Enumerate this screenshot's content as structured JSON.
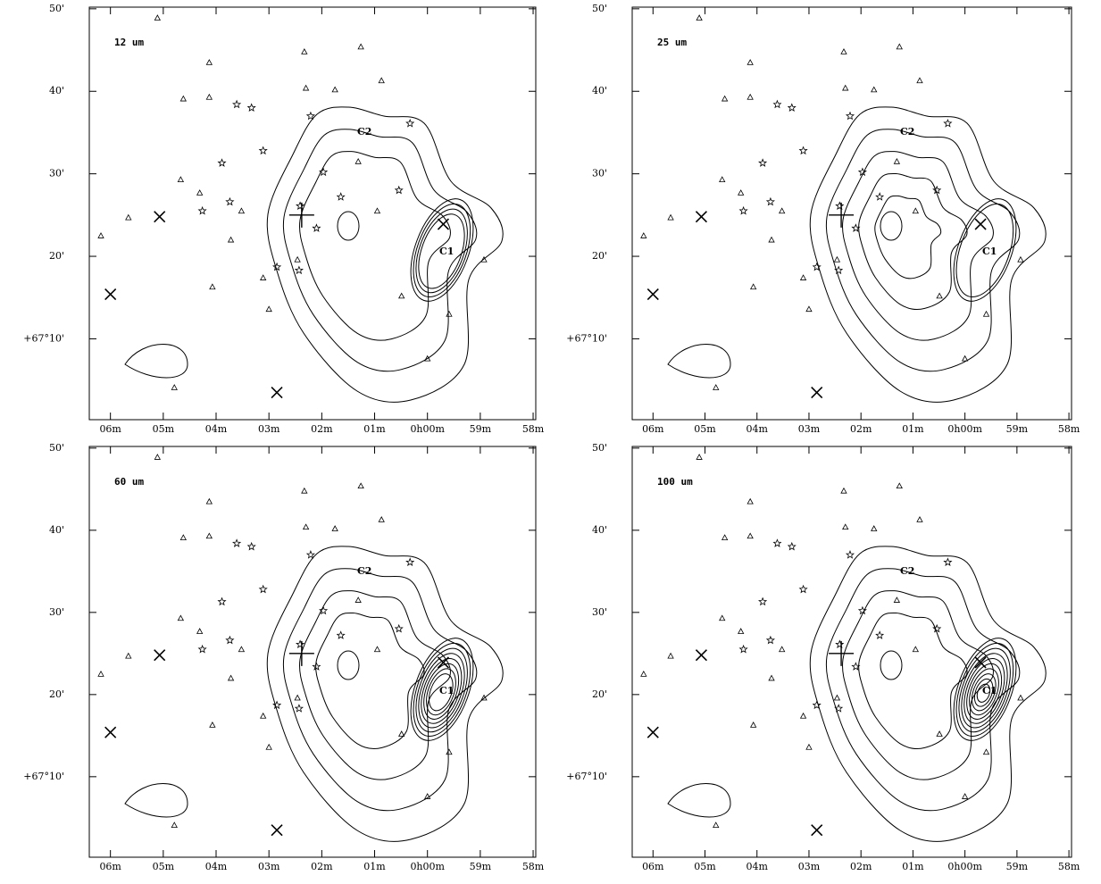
{
  "chart_data": [
    {
      "type": "scatter",
      "title": "12 um",
      "xticks": [
        {
          "value": 6,
          "label": "06m"
        },
        {
          "value": 5,
          "label": "05m"
        },
        {
          "value": 4,
          "label": "04m"
        },
        {
          "value": 3,
          "label": "03m"
        },
        {
          "value": 2,
          "label": "02m"
        },
        {
          "value": 1,
          "label": "01m"
        },
        {
          "value": 0,
          "label": "0h00m"
        },
        {
          "value": -1,
          "label": "59m"
        },
        {
          "value": -2,
          "label": "58m"
        }
      ],
      "xlim": [
        6.4,
        -2.05
      ],
      "ylim": [
        0.2,
        50.2
      ],
      "yticks": [
        {
          "value": 50,
          "label": "50'"
        },
        {
          "value": 40,
          "label": "40'"
        },
        {
          "value": 30,
          "label": "30'"
        },
        {
          "value": 20,
          "label": "20'"
        },
        {
          "value": 10,
          "label": "+67°10'"
        }
      ],
      "annotations": [
        "C2",
        "C1"
      ],
      "series": [
        {
          "marker": "triangle",
          "x": [
            5.11,
            2.33,
            1.26,
            4.13,
            4.62,
            4.13,
            1.75,
            0.87,
            2.3,
            5.66,
            6.18,
            4.31,
            4.07,
            3.0,
            4.79,
            0.49,
            0.0,
            -1.07,
            -0.41,
            2.46,
            3.11,
            1.31,
            0.95,
            3.72,
            3.52,
            4.67
          ],
          "values": [
            48.9,
            44.8,
            45.4,
            43.5,
            39.1,
            39.3,
            40.2,
            41.3,
            40.4,
            24.7,
            22.5,
            27.7,
            16.3,
            13.6,
            4.1,
            15.2,
            7.6,
            19.6,
            13.0,
            19.6,
            17.4,
            31.5,
            25.5,
            22.0,
            25.5,
            29.3
          ]
        },
        {
          "marker": "star",
          "x": [
            3.61,
            3.33,
            2.21,
            0.33,
            3.89,
            2.41,
            2.1,
            1.97,
            0.54,
            2.85,
            2.43,
            3.11,
            1.64,
            3.74,
            4.26
          ],
          "values": [
            38.4,
            38.0,
            37.0,
            36.1,
            31.3,
            26.1,
            23.4,
            30.2,
            28.0,
            18.7,
            18.3,
            32.8,
            27.2,
            26.6,
            25.5
          ]
        },
        {
          "marker": "x",
          "x": [
            5.07,
            6.0,
            2.85,
            -0.3
          ],
          "values": [
            24.8,
            15.4,
            3.5,
            23.9
          ]
        },
        {
          "marker": "plus",
          "x": [
            2.38
          ],
          "values": [
            25.0
          ]
        }
      ]
    },
    {
      "type": "scatter",
      "title": "25 um",
      "xticks": [
        {
          "value": 6,
          "label": "06m"
        },
        {
          "value": 5,
          "label": "05m"
        },
        {
          "value": 4,
          "label": "04m"
        },
        {
          "value": 3,
          "label": "03m"
        },
        {
          "value": 2,
          "label": "02m"
        },
        {
          "value": 1,
          "label": "01m"
        },
        {
          "value": 0,
          "label": "0h00m"
        },
        {
          "value": -1,
          "label": "59m"
        },
        {
          "value": -2,
          "label": "58m"
        }
      ],
      "xlim": [
        6.4,
        -2.05
      ],
      "ylim": [
        0.2,
        50.2
      ],
      "yticks": [
        {
          "value": 50,
          "label": "50'"
        },
        {
          "value": 40,
          "label": "40'"
        },
        {
          "value": 30,
          "label": "30'"
        },
        {
          "value": 20,
          "label": "20'"
        },
        {
          "value": 10,
          "label": "+67°10'"
        }
      ],
      "annotations": [
        "C2",
        "C1"
      ],
      "series": [
        {
          "marker": "triangle",
          "x": [
            5.11,
            2.33,
            1.26,
            4.13,
            4.62,
            4.13,
            1.75,
            0.87,
            2.3,
            5.66,
            6.18,
            4.31,
            4.07,
            3.0,
            4.79,
            0.49,
            0.0,
            -1.07,
            -0.41,
            2.46,
            3.11,
            1.31,
            0.95,
            3.72,
            3.52,
            4.67
          ],
          "values": [
            48.9,
            44.8,
            45.4,
            43.5,
            39.1,
            39.3,
            40.2,
            41.3,
            40.4,
            24.7,
            22.5,
            27.7,
            16.3,
            13.6,
            4.1,
            15.2,
            7.6,
            19.6,
            13.0,
            19.6,
            17.4,
            31.5,
            25.5,
            22.0,
            25.5,
            29.3
          ]
        },
        {
          "marker": "star",
          "x": [
            3.61,
            3.33,
            2.21,
            0.33,
            3.89,
            2.41,
            2.1,
            1.97,
            0.54,
            2.85,
            2.43,
            3.11,
            1.64,
            3.74,
            4.26
          ],
          "values": [
            38.4,
            38.0,
            37.0,
            36.1,
            31.3,
            26.1,
            23.4,
            30.2,
            28.0,
            18.7,
            18.3,
            32.8,
            27.2,
            26.6,
            25.5
          ]
        },
        {
          "marker": "x",
          "x": [
            5.07,
            6.0,
            2.85,
            -0.3
          ],
          "values": [
            24.8,
            15.4,
            3.5,
            23.9
          ]
        },
        {
          "marker": "plus",
          "x": [
            2.38
          ],
          "values": [
            25.0
          ]
        }
      ]
    },
    {
      "type": "scatter",
      "title": "60 um",
      "xticks": [
        {
          "value": 6,
          "label": "06m"
        },
        {
          "value": 5,
          "label": "05m"
        },
        {
          "value": 4,
          "label": "04m"
        },
        {
          "value": 3,
          "label": "03m"
        },
        {
          "value": 2,
          "label": "02m"
        },
        {
          "value": 1,
          "label": "01m"
        },
        {
          "value": 0,
          "label": "0h00m"
        },
        {
          "value": -1,
          "label": "59m"
        },
        {
          "value": -2,
          "label": "58m"
        }
      ],
      "xlim": [
        6.4,
        -2.05
      ],
      "ylim": [
        0.2,
        50.2
      ],
      "yticks": [
        {
          "value": 50,
          "label": "50'"
        },
        {
          "value": 40,
          "label": "40'"
        },
        {
          "value": 30,
          "label": "30'"
        },
        {
          "value": 20,
          "label": "20'"
        },
        {
          "value": 10,
          "label": "+67°10'"
        }
      ],
      "annotations": [
        "C2",
        "C1"
      ],
      "series": [
        {
          "marker": "triangle",
          "x": [
            5.11,
            2.33,
            1.26,
            4.13,
            4.62,
            4.13,
            1.75,
            0.87,
            2.3,
            5.66,
            6.18,
            4.31,
            4.07,
            3.0,
            4.79,
            0.49,
            0.0,
            -1.07,
            -0.41,
            2.46,
            3.11,
            1.31,
            0.95,
            3.72,
            3.52,
            4.67
          ],
          "values": [
            48.9,
            44.8,
            45.4,
            43.5,
            39.1,
            39.3,
            40.2,
            41.3,
            40.4,
            24.7,
            22.5,
            27.7,
            16.3,
            13.6,
            4.1,
            15.2,
            7.6,
            19.6,
            13.0,
            19.6,
            17.4,
            31.5,
            25.5,
            22.0,
            25.5,
            29.3
          ]
        },
        {
          "marker": "star",
          "x": [
            3.61,
            3.33,
            2.21,
            0.33,
            3.89,
            2.41,
            2.1,
            1.97,
            0.54,
            2.85,
            2.43,
            3.11,
            1.64,
            3.74,
            4.26
          ],
          "values": [
            38.4,
            38.0,
            37.0,
            36.1,
            31.3,
            26.1,
            23.4,
            30.2,
            28.0,
            18.7,
            18.3,
            32.8,
            27.2,
            26.6,
            25.5
          ]
        },
        {
          "marker": "x",
          "x": [
            5.07,
            6.0,
            2.85,
            -0.3
          ],
          "values": [
            24.8,
            15.4,
            3.5,
            23.9
          ]
        },
        {
          "marker": "plus",
          "x": [
            2.38
          ],
          "values": [
            25.0
          ]
        }
      ]
    },
    {
      "type": "scatter",
      "title": "100 um",
      "xticks": [
        {
          "value": 6,
          "label": "06m"
        },
        {
          "value": 5,
          "label": "05m"
        },
        {
          "value": 4,
          "label": "04m"
        },
        {
          "value": 3,
          "label": "03m"
        },
        {
          "value": 2,
          "label": "02m"
        },
        {
          "value": 1,
          "label": "01m"
        },
        {
          "value": 0,
          "label": "0h00m"
        },
        {
          "value": -1,
          "label": "59m"
        },
        {
          "value": -2,
          "label": "58m"
        }
      ],
      "xlim": [
        6.4,
        -2.05
      ],
      "ylim": [
        0.2,
        50.2
      ],
      "yticks": [
        {
          "value": 50,
          "label": "50'"
        },
        {
          "value": 40,
          "label": "40'"
        },
        {
          "value": 30,
          "label": "30'"
        },
        {
          "value": 20,
          "label": "20'"
        },
        {
          "value": 10,
          "label": "+67°10'"
        }
      ],
      "annotations": [
        "C2",
        "C1"
      ],
      "series": [
        {
          "marker": "triangle",
          "x": [
            5.11,
            2.33,
            1.26,
            4.13,
            4.62,
            4.13,
            1.75,
            0.87,
            2.3,
            5.66,
            6.18,
            4.31,
            4.07,
            3.0,
            4.79,
            0.49,
            0.0,
            -1.07,
            -0.41,
            2.46,
            3.11,
            1.31,
            0.95,
            3.72,
            3.52,
            4.67
          ],
          "values": [
            48.9,
            44.8,
            45.4,
            43.5,
            39.1,
            39.3,
            40.2,
            41.3,
            40.4,
            24.7,
            22.5,
            27.7,
            16.3,
            13.6,
            4.1,
            15.2,
            7.6,
            19.6,
            13.0,
            19.6,
            17.4,
            31.5,
            25.5,
            22.0,
            25.5,
            29.3
          ]
        },
        {
          "marker": "star",
          "x": [
            3.61,
            3.33,
            2.21,
            0.33,
            3.89,
            2.41,
            2.1,
            1.97,
            0.54,
            2.85,
            2.43,
            3.11,
            1.64,
            3.74,
            4.26
          ],
          "values": [
            38.4,
            38.0,
            37.0,
            36.1,
            31.3,
            26.1,
            23.4,
            30.2,
            28.0,
            18.7,
            18.3,
            32.8,
            27.2,
            26.6,
            25.5
          ]
        },
        {
          "marker": "x",
          "x": [
            5.07,
            6.0,
            2.85,
            -0.3
          ],
          "values": [
            24.8,
            15.4,
            3.5,
            23.9
          ]
        },
        {
          "marker": "plus",
          "x": [
            2.38
          ],
          "values": [
            25.0
          ]
        }
      ]
    }
  ]
}
